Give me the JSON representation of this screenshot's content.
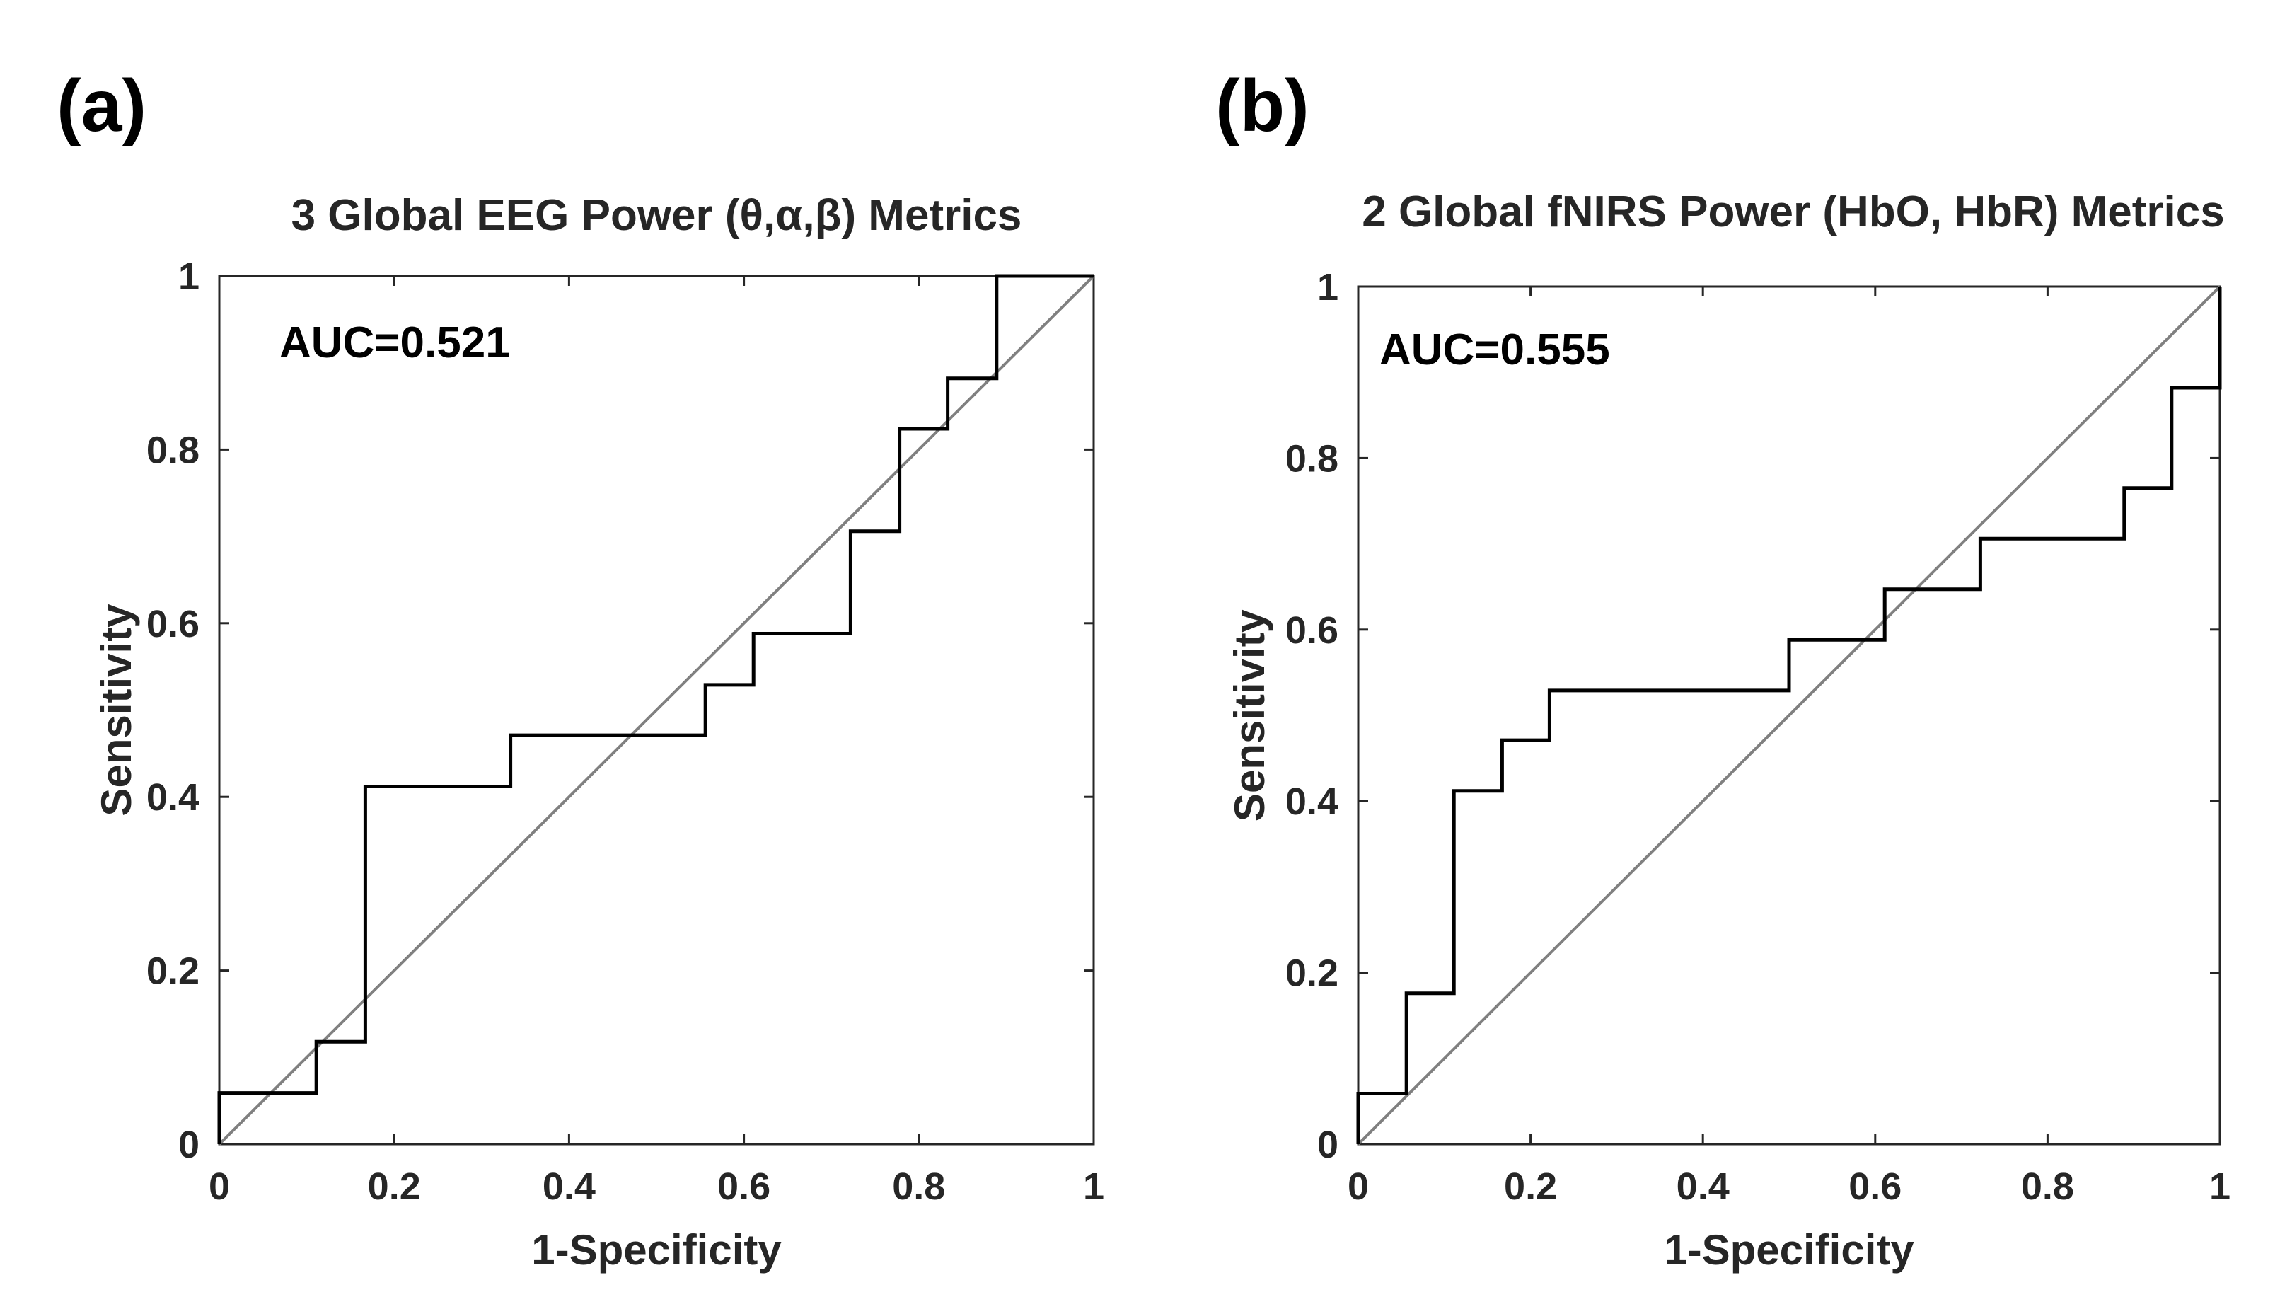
{
  "chart_data": [
    {
      "type": "line",
      "panel_label": "(a)",
      "title": "3 Global EEG Power (θ,α,β) Metrics",
      "xlabel": "1-Specificity",
      "ylabel": "Sensitivity",
      "xlim": [
        0,
        1
      ],
      "ylim": [
        0,
        1
      ],
      "xticks": [
        "0",
        "0.2",
        "0.4",
        "0.6",
        "0.8",
        "1"
      ],
      "yticks": [
        "0",
        "0.2",
        "0.4",
        "0.6",
        "0.8",
        "1"
      ],
      "annotation": "AUC=0.521",
      "series": [
        {
          "name": "ROC",
          "color": "#000000",
          "x": [
            0,
            0,
            0.111,
            0.111,
            0.167,
            0.167,
            0.333,
            0.333,
            0.556,
            0.556,
            0.611,
            0.611,
            0.722,
            0.722,
            0.778,
            0.778,
            0.833,
            0.833,
            0.889,
            0.889,
            1.0
          ],
          "y": [
            0,
            0.059,
            0.059,
            0.118,
            0.118,
            0.412,
            0.412,
            0.471,
            0.471,
            0.529,
            0.529,
            0.588,
            0.588,
            0.706,
            0.706,
            0.824,
            0.824,
            0.882,
            0.882,
            1.0,
            1.0
          ]
        },
        {
          "name": "Chance",
          "color": "#808080",
          "x": [
            0,
            1
          ],
          "y": [
            0,
            1
          ]
        }
      ]
    },
    {
      "type": "line",
      "panel_label": "(b)",
      "title": "2 Global fNIRS Power (HbO, HbR) Metrics",
      "xlabel": "1-Specificity",
      "ylabel": "Sensitivity",
      "xlim": [
        0,
        1
      ],
      "ylim": [
        0,
        1
      ],
      "xticks": [
        "0",
        "0.2",
        "0.4",
        "0.6",
        "0.8",
        "1"
      ],
      "yticks": [
        "0",
        "0.2",
        "0.4",
        "0.6",
        "0.8",
        "1"
      ],
      "annotation": "AUC=0.555",
      "series": [
        {
          "name": "ROC",
          "color": "#000000",
          "x": [
            0,
            0,
            0.056,
            0.056,
            0.111,
            0.111,
            0.167,
            0.167,
            0.222,
            0.222,
            0.5,
            0.5,
            0.611,
            0.611,
            0.722,
            0.722,
            0.889,
            0.889,
            0.944,
            0.944,
            1.0,
            1.0
          ],
          "y": [
            0,
            0.059,
            0.059,
            0.176,
            0.176,
            0.412,
            0.412,
            0.471,
            0.471,
            0.529,
            0.529,
            0.588,
            0.588,
            0.647,
            0.647,
            0.706,
            0.706,
            0.765,
            0.765,
            0.882,
            0.882,
            1.0
          ]
        },
        {
          "name": "Chance",
          "color": "#808080",
          "x": [
            0,
            1
          ],
          "y": [
            0,
            1
          ]
        }
      ]
    }
  ]
}
